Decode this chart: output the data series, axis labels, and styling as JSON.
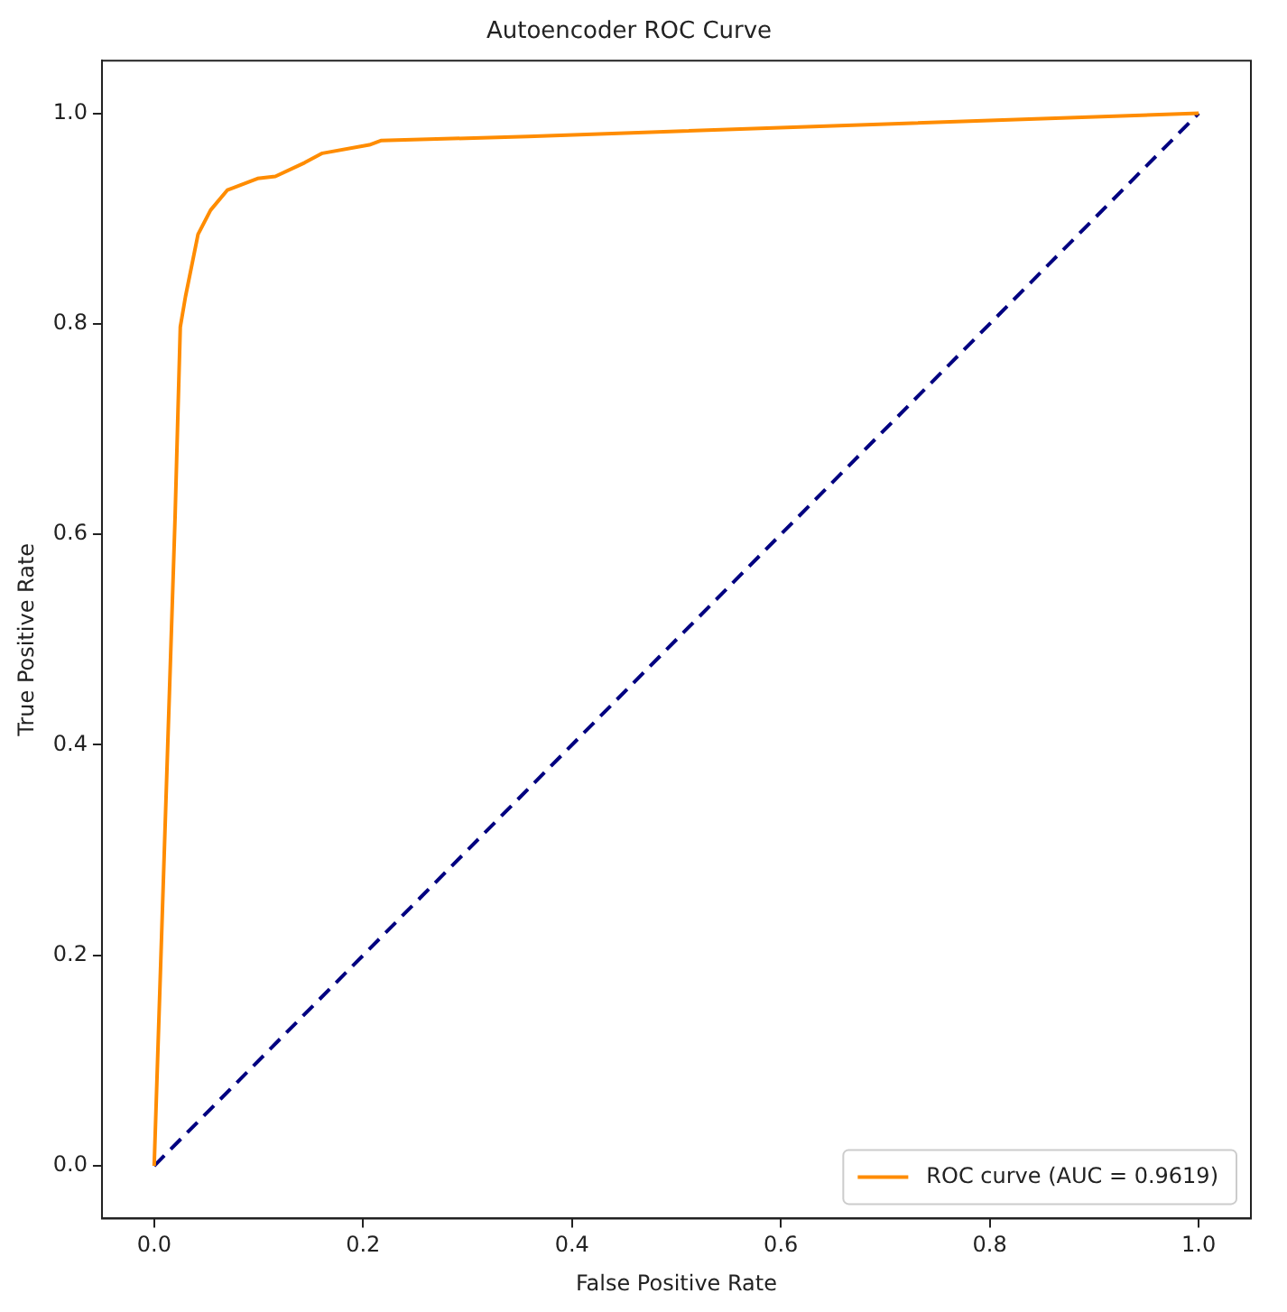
{
  "chart_data": {
    "type": "line",
    "title": "Autoencoder ROC Curve",
    "xlabel": "False Positive Rate",
    "ylabel": "True Positive Rate",
    "xlim": [
      -0.05,
      1.05
    ],
    "ylim": [
      -0.05,
      1.05
    ],
    "xticks": [
      {
        "value": 0,
        "label": "0.0"
      },
      {
        "value": 0.2,
        "label": "0.2"
      },
      {
        "value": 0.4,
        "label": "0.4"
      },
      {
        "value": 0.6,
        "label": "0.6"
      },
      {
        "value": 0.8,
        "label": "0.8"
      },
      {
        "value": 1,
        "label": "1.0"
      }
    ],
    "yticks": [
      {
        "value": 0,
        "label": "0.0"
      },
      {
        "value": 0.2,
        "label": "0.2"
      },
      {
        "value": 0.4,
        "label": "0.4"
      },
      {
        "value": 0.6,
        "label": "0.6"
      },
      {
        "value": 0.8,
        "label": "0.8"
      },
      {
        "value": 1,
        "label": "1.0"
      }
    ],
    "grid": false,
    "legend": "bottom right",
    "marker": "none",
    "series": [
      {
        "name": "ROC curve (AUC = 0.9619)",
        "color": "#ff8c00",
        "line_style": "solid",
        "x": [
          0,
          0.02,
          0.025,
          0.03,
          0.042,
          0.054,
          0.07,
          0.099,
          0.116,
          0.144,
          0.161,
          0.206,
          0.217,
          0.358,
          1
        ],
        "values": [
          0,
          0.616,
          0.797,
          0.826,
          0.885,
          0.908,
          0.927,
          0.938,
          0.94,
          0.953,
          0.962,
          0.97,
          0.974,
          0.978,
          1
        ]
      },
      {
        "color": "#000080",
        "line_style": "dashed",
        "x": [
          0,
          1
        ],
        "values": [
          0,
          1
        ]
      }
    ]
  }
}
